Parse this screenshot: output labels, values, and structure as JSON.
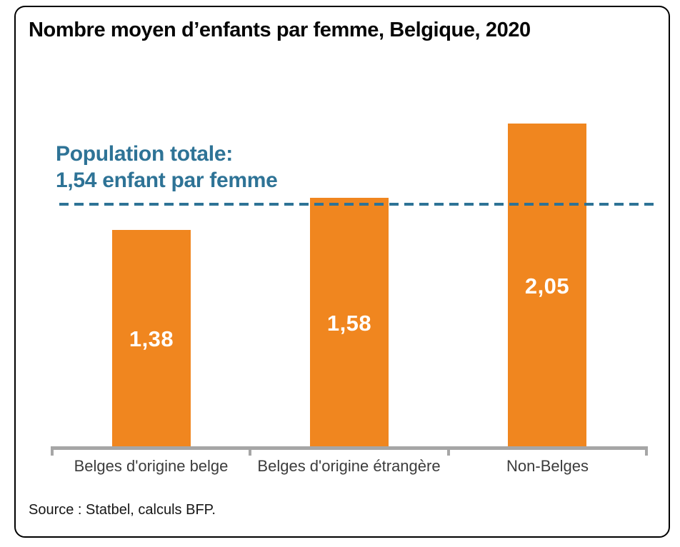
{
  "chart_data": {
    "type": "bar",
    "title": "Nombre moyen d’enfants par femme, Belgique, 2020",
    "categories": [
      "Belges d'origine belge",
      "Belges d'origine étrangère",
      "Non-Belges"
    ],
    "values": [
      1.38,
      1.58,
      2.05
    ],
    "value_labels": [
      "1,38",
      "1,58",
      "2,05"
    ],
    "reference_line": {
      "value": 1.54,
      "label_line1": "Population totale:",
      "label_line2": "1,54 enfant par femme"
    },
    "xlabel": "",
    "ylabel": "",
    "ylim": [
      0,
      2.5
    ],
    "grid": false,
    "legend": "none",
    "bar_color": "#F0861F",
    "reference_color": "#2E7396",
    "axis_color": "#A6A6A6",
    "value_label_color": "#FFFFFF",
    "category_label_color": "#3C3C3C"
  },
  "source": "Source : Statbel, calculs BFP."
}
